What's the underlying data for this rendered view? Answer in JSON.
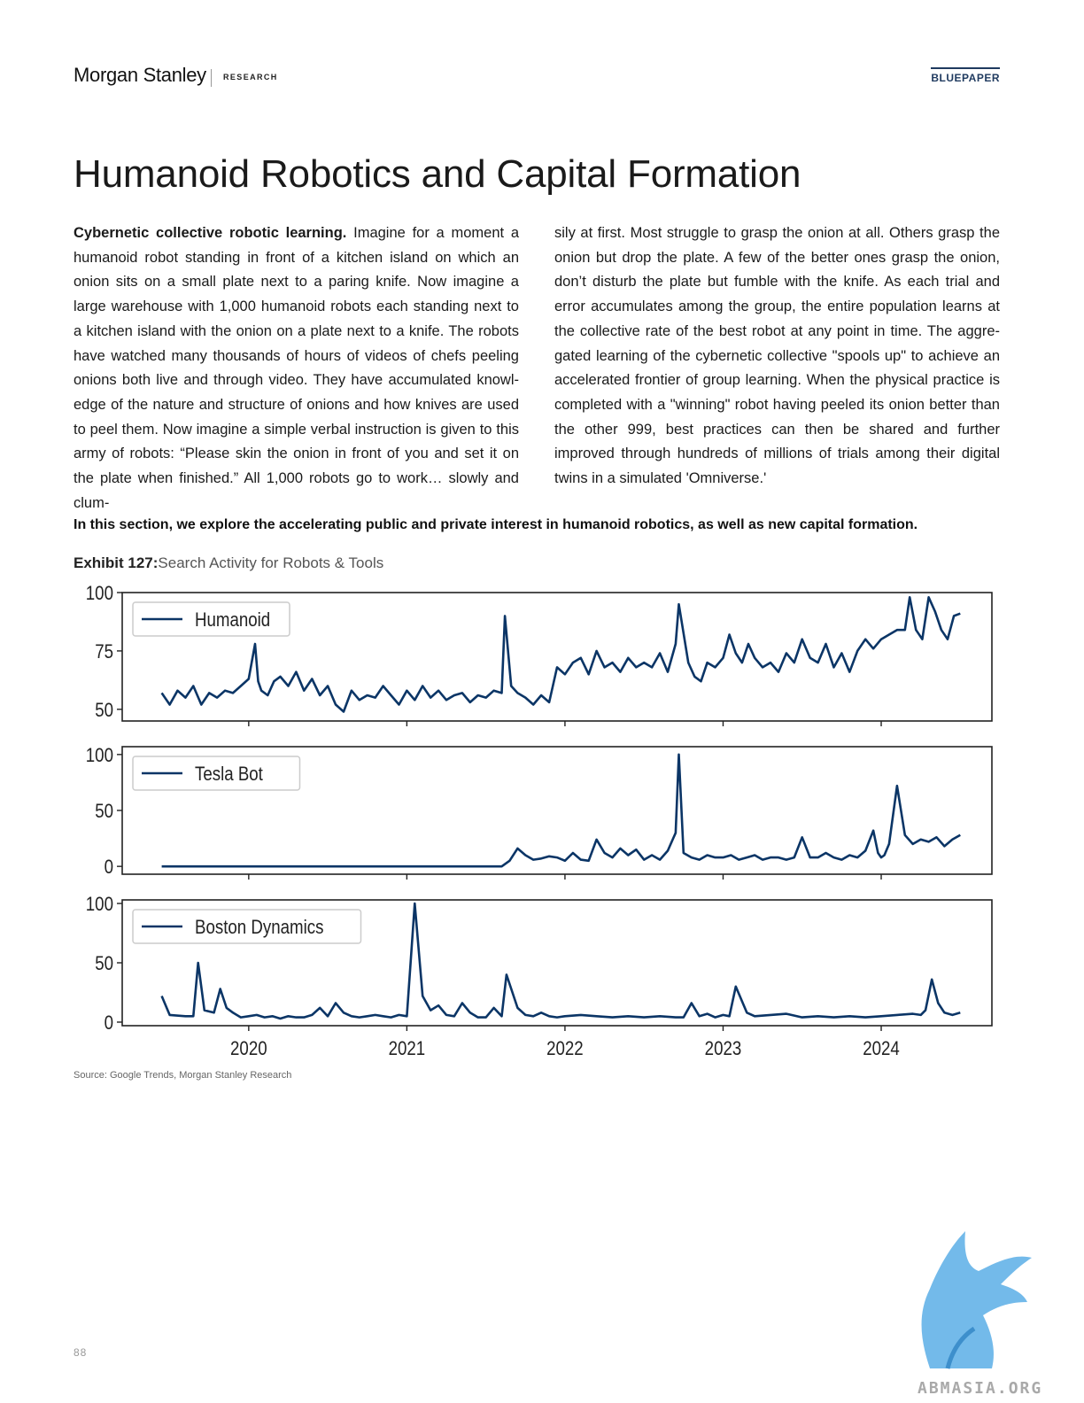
{
  "header": {
    "brand": "Morgan Stanley",
    "section": "RESEARCH",
    "tag": "BLUEPAPER"
  },
  "page_title": "Humanoid Robotics and Capital Formation",
  "body": {
    "lead_bold": "Cybernetic collective robotic learning.",
    "left_text": " Imagine for a moment a humanoid robot standing in front of a kitchen island on which an onion sits on a small plate next to a paring knife. Now imagine a large warehouse with 1,000 humanoid robots each standing next to a kitchen island with the onion on a plate next to a knife. The robots have watched many thousands of hours of videos of chefs peeling onions both live and through video. They have accumulated knowl-edge of the nature and structure of onions and how knives are used to peel them. Now imagine a simple verbal instruction is given to this army of robots: “Please skin the onion in front of you and set it on the plate when finished.” All 1,000 robots go to work… slowly and clum-",
    "right_text": "sily at first. Most struggle to grasp the onion at all. Others grasp the onion but drop the plate. A few of the better ones grasp the onion, don’t disturb the plate but fumble with the knife. As each trial and error accumulates among the group, the entire population learns at the collective rate of the best robot at any point in time. The aggre-gated learning of the cybernetic collective \"spools up\" to achieve an accelerated frontier of group learning. When the physical practice is completed with a \"winning\" robot having peeled its onion better than the other 999, best practices can then be shared and further improved through hundreds of millions of trials among their digital twins in a simulated 'Omniverse.'",
    "intro": "In this section, we explore the accelerating public and private interest in humanoid robotics, as well as new capital formation."
  },
  "exhibit": {
    "number": "Exhibit 127:",
    "title": "Search Activity for Robots & Tools"
  },
  "source": "Source: Google Trends, Morgan Stanley Research",
  "page_number": "88",
  "watermark_text": "ABMASIA.ORG",
  "colors": {
    "line": "#0b3566",
    "frame": "#222222",
    "legend_border": "#cccccc"
  },
  "chart_data": [
    {
      "type": "line",
      "series": [
        {
          "name": "Humanoid",
          "x": [
            2019.45,
            2019.5,
            2019.55,
            2019.6,
            2019.65,
            2019.7,
            2019.75,
            2019.8,
            2019.85,
            2019.9,
            2019.95,
            2020.0,
            2020.04,
            2020.06,
            2020.08,
            2020.12,
            2020.16,
            2020.2,
            2020.25,
            2020.3,
            2020.35,
            2020.4,
            2020.45,
            2020.5,
            2020.55,
            2020.6,
            2020.65,
            2020.7,
            2020.75,
            2020.8,
            2020.85,
            2020.9,
            2020.95,
            2021.0,
            2021.05,
            2021.1,
            2021.15,
            2021.2,
            2021.25,
            2021.3,
            2021.35,
            2021.4,
            2021.45,
            2021.5,
            2021.55,
            2021.6,
            2021.62,
            2021.66,
            2021.7,
            2021.75,
            2021.8,
            2021.85,
            2021.9,
            2021.95,
            2022.0,
            2022.05,
            2022.1,
            2022.15,
            2022.2,
            2022.25,
            2022.3,
            2022.35,
            2022.4,
            2022.45,
            2022.5,
            2022.55,
            2022.6,
            2022.65,
            2022.7,
            2022.72,
            2022.78,
            2022.82,
            2022.86,
            2022.9,
            2022.95,
            2023.0,
            2023.04,
            2023.08,
            2023.12,
            2023.16,
            2023.2,
            2023.25,
            2023.3,
            2023.35,
            2023.4,
            2023.45,
            2023.5,
            2023.55,
            2023.6,
            2023.65,
            2023.7,
            2023.75,
            2023.8,
            2023.85,
            2023.9,
            2023.95,
            2024.0,
            2024.05,
            2024.1,
            2024.15,
            2024.18,
            2024.22,
            2024.26,
            2024.3,
            2024.34,
            2024.38,
            2024.42,
            2024.46,
            2024.5
          ],
          "y": [
            57,
            52,
            58,
            55,
            60,
            52,
            57,
            55,
            58,
            57,
            60,
            63,
            78,
            62,
            58,
            56,
            62,
            64,
            60,
            66,
            58,
            63,
            56,
            60,
            52,
            49,
            58,
            54,
            56,
            55,
            60,
            56,
            52,
            58,
            54,
            60,
            55,
            58,
            54,
            56,
            57,
            53,
            56,
            55,
            58,
            57,
            90,
            60,
            57,
            55,
            52,
            56,
            53,
            68,
            65,
            70,
            72,
            65,
            75,
            68,
            70,
            66,
            72,
            68,
            70,
            68,
            74,
            66,
            78,
            95,
            70,
            64,
            62,
            70,
            68,
            72,
            82,
            74,
            70,
            78,
            72,
            68,
            70,
            66,
            74,
            70,
            80,
            72,
            70,
            78,
            68,
            74,
            66,
            75,
            80,
            76,
            80,
            82,
            84,
            84,
            98,
            84,
            80,
            98,
            92,
            84,
            80,
            90,
            91
          ]
        }
      ],
      "ylim": [
        45,
        100
      ],
      "yticks": [
        50,
        75,
        100
      ],
      "xlim": [
        2019.2,
        2024.7
      ],
      "legend": "top-left"
    },
    {
      "type": "line",
      "series": [
        {
          "name": "Tesla Bot",
          "x": [
            2019.45,
            2021.6,
            2021.65,
            2021.7,
            2021.75,
            2021.8,
            2021.85,
            2021.9,
            2021.95,
            2022.0,
            2022.05,
            2022.1,
            2022.15,
            2022.2,
            2022.25,
            2022.3,
            2022.35,
            2022.4,
            2022.45,
            2022.5,
            2022.55,
            2022.6,
            2022.65,
            2022.7,
            2022.72,
            2022.75,
            2022.8,
            2022.85,
            2022.9,
            2022.95,
            2023.0,
            2023.05,
            2023.1,
            2023.15,
            2023.2,
            2023.25,
            2023.3,
            2023.35,
            2023.4,
            2023.45,
            2023.5,
            2023.55,
            2023.6,
            2023.65,
            2023.7,
            2023.75,
            2023.8,
            2023.85,
            2023.9,
            2023.95,
            2023.98,
            2024.0,
            2024.02,
            2024.05,
            2024.1,
            2024.15,
            2024.2,
            2024.25,
            2024.3,
            2024.35,
            2024.4,
            2024.45,
            2024.5
          ],
          "y": [
            0,
            0,
            5,
            16,
            10,
            6,
            7,
            9,
            8,
            5,
            12,
            6,
            5,
            24,
            12,
            8,
            16,
            10,
            15,
            6,
            10,
            6,
            14,
            30,
            100,
            12,
            8,
            6,
            10,
            8,
            8,
            10,
            6,
            8,
            10,
            6,
            8,
            8,
            6,
            8,
            26,
            8,
            8,
            12,
            8,
            6,
            10,
            8,
            14,
            32,
            12,
            8,
            10,
            20,
            72,
            28,
            20,
            24,
            22,
            26,
            18,
            24,
            28
          ]
        }
      ],
      "ylim": [
        -7,
        107
      ],
      "yticks": [
        0,
        50,
        100
      ],
      "xlim": [
        2019.2,
        2024.7
      ],
      "legend": "top-left"
    },
    {
      "type": "line",
      "series": [
        {
          "name": "Boston Dynamics",
          "x": [
            2019.45,
            2019.5,
            2019.6,
            2019.65,
            2019.68,
            2019.72,
            2019.78,
            2019.82,
            2019.86,
            2019.9,
            2019.95,
            2020.0,
            2020.05,
            2020.1,
            2020.15,
            2020.2,
            2020.25,
            2020.3,
            2020.35,
            2020.4,
            2020.45,
            2020.5,
            2020.55,
            2020.6,
            2020.65,
            2020.7,
            2020.75,
            2020.8,
            2020.85,
            2020.9,
            2020.95,
            2021.0,
            2021.05,
            2021.1,
            2021.15,
            2021.2,
            2021.25,
            2021.3,
            2021.35,
            2021.4,
            2021.45,
            2021.5,
            2021.55,
            2021.6,
            2021.63,
            2021.7,
            2021.75,
            2021.8,
            2021.85,
            2021.9,
            2021.95,
            2022.0,
            2022.1,
            2022.2,
            2022.3,
            2022.4,
            2022.5,
            2022.6,
            2022.7,
            2022.75,
            2022.8,
            2022.85,
            2022.9,
            2022.95,
            2023.0,
            2023.04,
            2023.08,
            2023.15,
            2023.2,
            2023.3,
            2023.4,
            2023.5,
            2023.6,
            2023.7,
            2023.8,
            2023.9,
            2024.0,
            2024.1,
            2024.2,
            2024.25,
            2024.28,
            2024.32,
            2024.36,
            2024.4,
            2024.45,
            2024.5
          ],
          "y": [
            22,
            6,
            5,
            5,
            50,
            10,
            8,
            28,
            12,
            8,
            4,
            5,
            6,
            4,
            5,
            3,
            5,
            4,
            4,
            6,
            12,
            5,
            16,
            8,
            5,
            4,
            5,
            6,
            5,
            4,
            6,
            5,
            100,
            22,
            10,
            14,
            6,
            5,
            16,
            8,
            4,
            4,
            12,
            5,
            40,
            12,
            6,
            5,
            8,
            5,
            4,
            5,
            6,
            5,
            4,
            5,
            4,
            5,
            4,
            4,
            16,
            5,
            7,
            4,
            6,
            5,
            30,
            8,
            5,
            6,
            7,
            4,
            5,
            4,
            5,
            4,
            5,
            6,
            7,
            6,
            10,
            36,
            16,
            8,
            6,
            8
          ]
        }
      ],
      "ylim": [
        -3,
        103
      ],
      "yticks": [
        0,
        50,
        100
      ],
      "xlim": [
        2019.2,
        2024.7
      ],
      "xticks": [
        "2020",
        "2021",
        "2022",
        "2023",
        "2024"
      ],
      "legend": "top-left"
    }
  ]
}
